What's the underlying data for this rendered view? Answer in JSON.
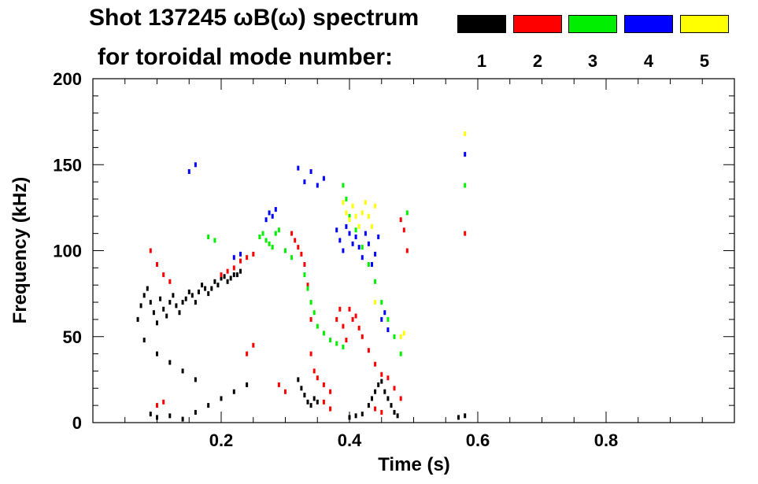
{
  "title": {
    "line1": "Shot 137245 ωB(ω) spectrum",
    "line2": "for toroidal mode number:"
  },
  "legend": [
    {
      "label": "1",
      "color": "#000000"
    },
    {
      "label": "2",
      "color": "#ff0000"
    },
    {
      "label": "3",
      "color": "#00ee00"
    },
    {
      "label": "4",
      "color": "#0000ff"
    },
    {
      "label": "5",
      "color": "#ffff00"
    }
  ],
  "chart_data": {
    "type": "scatter",
    "title": "Shot 137245 ωB(ω) spectrum",
    "xlabel": "Time (s)",
    "ylabel": "Frequency (kHz)",
    "xlim": [
      0.0,
      1.0
    ],
    "ylim": [
      0,
      200
    ],
    "x_ticks": [
      0.2,
      0.4,
      0.6,
      0.8
    ],
    "x_tick_labels": [
      "0.2",
      "0.4",
      "0.6",
      "0.8"
    ],
    "y_ticks": [
      0,
      50,
      100,
      150,
      200
    ],
    "y_tick_labels": [
      "0",
      "50",
      "100",
      "150",
      "200"
    ],
    "series": [
      {
        "name": "1",
        "color": "#000000",
        "points": [
          [
            0.07,
            60
          ],
          [
            0.075,
            68
          ],
          [
            0.08,
            74
          ],
          [
            0.085,
            78
          ],
          [
            0.09,
            70
          ],
          [
            0.095,
            64
          ],
          [
            0.1,
            58
          ],
          [
            0.105,
            72
          ],
          [
            0.11,
            66
          ],
          [
            0.115,
            62
          ],
          [
            0.12,
            70
          ],
          [
            0.125,
            74
          ],
          [
            0.13,
            68
          ],
          [
            0.135,
            64
          ],
          [
            0.14,
            70
          ],
          [
            0.145,
            72
          ],
          [
            0.15,
            76
          ],
          [
            0.155,
            74
          ],
          [
            0.16,
            70
          ],
          [
            0.165,
            76
          ],
          [
            0.17,
            80
          ],
          [
            0.175,
            78
          ],
          [
            0.18,
            75
          ],
          [
            0.185,
            78
          ],
          [
            0.19,
            82
          ],
          [
            0.195,
            80
          ],
          [
            0.2,
            84
          ],
          [
            0.205,
            85
          ],
          [
            0.21,
            82
          ],
          [
            0.215,
            84
          ],
          [
            0.22,
            86
          ],
          [
            0.225,
            86
          ],
          [
            0.23,
            88
          ],
          [
            0.08,
            48
          ],
          [
            0.1,
            40
          ],
          [
            0.12,
            35
          ],
          [
            0.14,
            30
          ],
          [
            0.16,
            25
          ],
          [
            0.09,
            5
          ],
          [
            0.1,
            3
          ],
          [
            0.12,
            4
          ],
          [
            0.14,
            2
          ],
          [
            0.16,
            6
          ],
          [
            0.18,
            10
          ],
          [
            0.2,
            14
          ],
          [
            0.22,
            18
          ],
          [
            0.24,
            22
          ],
          [
            0.32,
            25
          ],
          [
            0.325,
            20
          ],
          [
            0.33,
            16
          ],
          [
            0.335,
            12
          ],
          [
            0.34,
            10
          ],
          [
            0.345,
            14
          ],
          [
            0.35,
            12
          ],
          [
            0.43,
            10
          ],
          [
            0.435,
            14
          ],
          [
            0.44,
            18
          ],
          [
            0.445,
            22
          ],
          [
            0.45,
            24
          ],
          [
            0.455,
            18
          ],
          [
            0.46,
            14
          ],
          [
            0.465,
            10
          ],
          [
            0.47,
            6
          ],
          [
            0.475,
            4
          ],
          [
            0.4,
            3
          ],
          [
            0.41,
            4
          ],
          [
            0.42,
            5
          ],
          [
            0.57,
            3
          ],
          [
            0.58,
            4
          ]
        ]
      },
      {
        "name": "2",
        "color": "#ff0000",
        "points": [
          [
            0.09,
            100
          ],
          [
            0.1,
            92
          ],
          [
            0.11,
            86
          ],
          [
            0.12,
            82
          ],
          [
            0.2,
            86
          ],
          [
            0.21,
            88
          ],
          [
            0.22,
            90
          ],
          [
            0.23,
            94
          ],
          [
            0.24,
            96
          ],
          [
            0.25,
            98
          ],
          [
            0.31,
            110
          ],
          [
            0.315,
            106
          ],
          [
            0.32,
            102
          ],
          [
            0.325,
            98
          ],
          [
            0.33,
            92
          ],
          [
            0.335,
            80
          ],
          [
            0.34,
            60
          ],
          [
            0.34,
            40
          ],
          [
            0.345,
            30
          ],
          [
            0.35,
            26
          ],
          [
            0.36,
            22
          ],
          [
            0.37,
            18
          ],
          [
            0.38,
            60
          ],
          [
            0.385,
            66
          ],
          [
            0.39,
            56
          ],
          [
            0.395,
            48
          ],
          [
            0.4,
            66
          ],
          [
            0.405,
            60
          ],
          [
            0.41,
            62
          ],
          [
            0.415,
            55
          ],
          [
            0.42,
            50
          ],
          [
            0.43,
            42
          ],
          [
            0.44,
            34
          ],
          [
            0.45,
            28
          ],
          [
            0.46,
            26
          ],
          [
            0.47,
            20
          ],
          [
            0.48,
            14
          ],
          [
            0.48,
            118
          ],
          [
            0.485,
            112
          ],
          [
            0.49,
            100
          ],
          [
            0.24,
            40
          ],
          [
            0.25,
            45
          ],
          [
            0.1,
            10
          ],
          [
            0.11,
            12
          ],
          [
            0.58,
            110
          ],
          [
            0.29,
            22
          ],
          [
            0.3,
            18
          ],
          [
            0.36,
            12
          ],
          [
            0.37,
            8
          ],
          [
            0.44,
            8
          ],
          [
            0.45,
            6
          ]
        ]
      },
      {
        "name": "3",
        "color": "#00ee00",
        "points": [
          [
            0.26,
            108
          ],
          [
            0.265,
            110
          ],
          [
            0.27,
            106
          ],
          [
            0.275,
            104
          ],
          [
            0.28,
            102
          ],
          [
            0.285,
            110
          ],
          [
            0.29,
            112
          ],
          [
            0.33,
            86
          ],
          [
            0.335,
            78
          ],
          [
            0.34,
            70
          ],
          [
            0.345,
            64
          ],
          [
            0.35,
            56
          ],
          [
            0.36,
            52
          ],
          [
            0.37,
            48
          ],
          [
            0.38,
            46
          ],
          [
            0.39,
            44
          ],
          [
            0.39,
            138
          ],
          [
            0.395,
            130
          ],
          [
            0.4,
            120
          ],
          [
            0.41,
            112
          ],
          [
            0.42,
            102
          ],
          [
            0.43,
            92
          ],
          [
            0.44,
            82
          ],
          [
            0.45,
            70
          ],
          [
            0.46,
            60
          ],
          [
            0.47,
            50
          ],
          [
            0.48,
            40
          ],
          [
            0.49,
            122
          ],
          [
            0.58,
            138
          ],
          [
            0.3,
            100
          ],
          [
            0.31,
            96
          ],
          [
            0.18,
            108
          ],
          [
            0.19,
            106
          ]
        ]
      },
      {
        "name": "4",
        "color": "#0000ff",
        "points": [
          [
            0.22,
            96
          ],
          [
            0.23,
            98
          ],
          [
            0.27,
            118
          ],
          [
            0.275,
            122
          ],
          [
            0.28,
            120
          ],
          [
            0.285,
            124
          ],
          [
            0.32,
            148
          ],
          [
            0.33,
            140
          ],
          [
            0.34,
            146
          ],
          [
            0.35,
            138
          ],
          [
            0.36,
            142
          ],
          [
            0.38,
            112
          ],
          [
            0.385,
            106
          ],
          [
            0.39,
            100
          ],
          [
            0.395,
            114
          ],
          [
            0.4,
            110
          ],
          [
            0.405,
            104
          ],
          [
            0.41,
            108
          ],
          [
            0.415,
            102
          ],
          [
            0.42,
            96
          ],
          [
            0.425,
            110
          ],
          [
            0.43,
            104
          ],
          [
            0.435,
            92
          ],
          [
            0.44,
            98
          ],
          [
            0.445,
            108
          ],
          [
            0.45,
            60
          ],
          [
            0.455,
            64
          ],
          [
            0.46,
            54
          ],
          [
            0.58,
            156
          ],
          [
            0.15,
            146
          ],
          [
            0.16,
            150
          ]
        ]
      },
      {
        "name": "5",
        "color": "#ffff00",
        "points": [
          [
            0.39,
            128
          ],
          [
            0.395,
            122
          ],
          [
            0.4,
            118
          ],
          [
            0.405,
            126
          ],
          [
            0.41,
            120
          ],
          [
            0.415,
            114
          ],
          [
            0.42,
            122
          ],
          [
            0.425,
            128
          ],
          [
            0.43,
            120
          ],
          [
            0.435,
            114
          ],
          [
            0.44,
            126
          ],
          [
            0.48,
            50
          ],
          [
            0.485,
            52
          ],
          [
            0.58,
            168
          ],
          [
            0.44,
            70
          ]
        ]
      }
    ]
  }
}
